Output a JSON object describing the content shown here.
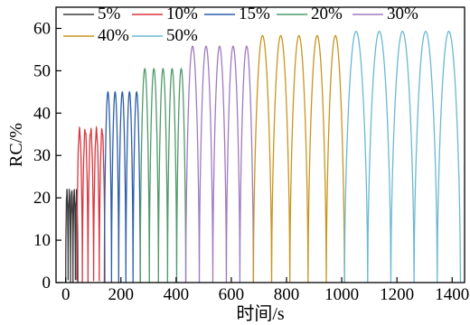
{
  "chart_data": {
    "type": "line",
    "xlabel": "时间/s",
    "ylabel": "RC/%",
    "xlim": [
      -35,
      1445
    ],
    "ylim": [
      0,
      65
    ],
    "xticks": [
      0,
      200,
      400,
      600,
      800,
      1000,
      1200,
      1400
    ],
    "yticks": [
      0,
      10,
      20,
      30,
      40,
      50,
      60
    ],
    "grid": false,
    "legend": "top, two rows",
    "series": [
      {
        "name": "5%",
        "color": "#3a3a3a",
        "t_start": 0,
        "t_end": 44,
        "cycles": 5,
        "peak": 21.5
      },
      {
        "name": "10%",
        "color": "#d9363e",
        "t_start": 40,
        "t_end": 142,
        "cycles": 5,
        "peak": 36
      },
      {
        "name": "15%",
        "color": "#2e5fa8",
        "t_start": 140,
        "t_end": 270,
        "cycles": 5,
        "peak": 45
      },
      {
        "name": "20%",
        "color": "#4f9a6a",
        "t_start": 270,
        "t_end": 435,
        "cycles": 5,
        "peak": 50.5
      },
      {
        "name": "30%",
        "color": "#a07ac0",
        "t_start": 435,
        "t_end": 680,
        "cycles": 5,
        "peak": 55.8
      },
      {
        "name": "40%",
        "color": "#c9951e",
        "t_start": 680,
        "t_end": 1010,
        "cycles": 5,
        "peak": 58.3
      },
      {
        "name": "50%",
        "color": "#6ab9d2",
        "t_start": 1010,
        "t_end": 1430,
        "cycles": 5,
        "peak": 59.3
      }
    ]
  }
}
